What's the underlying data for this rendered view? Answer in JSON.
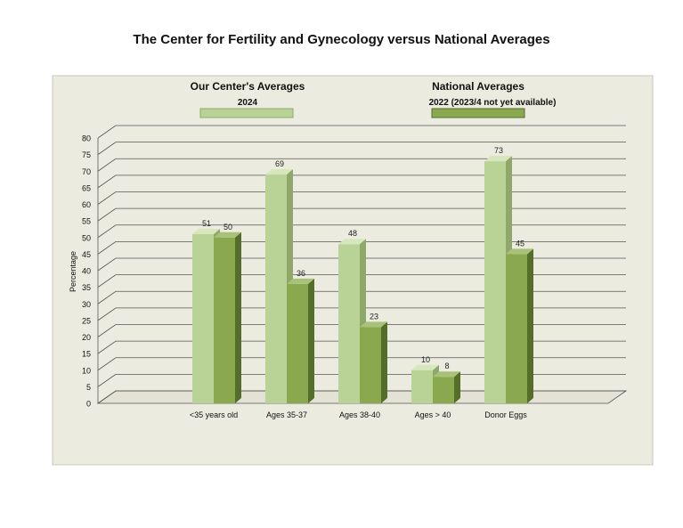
{
  "chart_data": {
    "type": "bar",
    "title": "The Center for Fertility and Gynecology versus National Averages",
    "ylabel": "Percentage",
    "xlabel": "",
    "ylim": [
      0,
      80
    ],
    "ytick_step": 5,
    "grid": true,
    "legend_placement": "top",
    "categories": [
      "<35 years old",
      "Ages 35-37",
      "Ages 38-40",
      "Ages > 40",
      "Donor Eggs"
    ],
    "series": [
      {
        "name": "Our Center's Averages",
        "subtitle": "2024",
        "color": "#b9d295",
        "side": "#8fa86a",
        "top": "#d6e6bd",
        "values": [
          51,
          69,
          48,
          10,
          73
        ]
      },
      {
        "name": "National  Averages",
        "subtitle": "2022 (2023/4 not yet available)",
        "color": "#8aa84e",
        "side": "#546e2a",
        "top": "#a9c27a",
        "values": [
          50,
          36,
          23,
          8,
          45
        ]
      }
    ],
    "plot_background": "#ecebe0"
  }
}
